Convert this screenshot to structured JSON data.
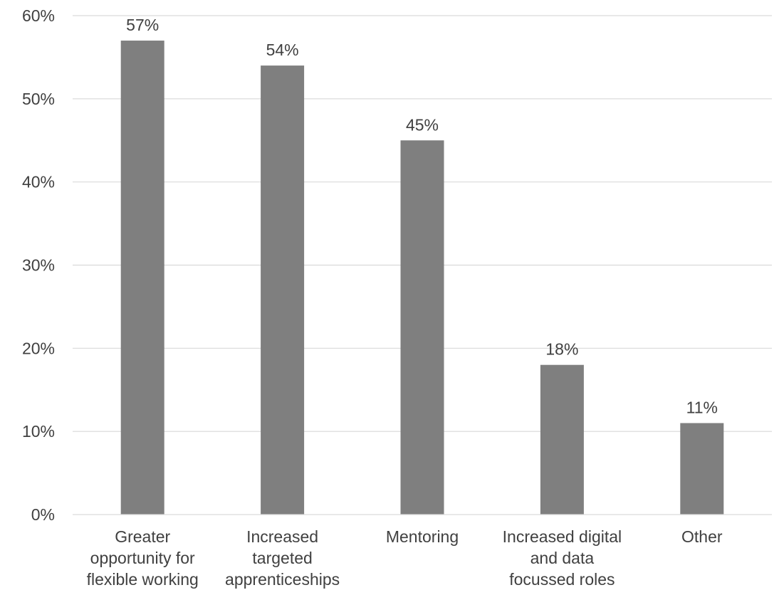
{
  "chart_data": {
    "type": "bar",
    "title": "",
    "xlabel": "",
    "ylabel": "",
    "categories": [
      [
        "Greater",
        "opportunity for",
        "flexible working"
      ],
      [
        "Increased",
        "targeted",
        "apprenticeships"
      ],
      [
        "Mentoring"
      ],
      [
        "Increased digital",
        "and data",
        "focussed roles"
      ],
      [
        "Other"
      ]
    ],
    "values": [
      57,
      54,
      45,
      18,
      11
    ],
    "value_labels": [
      "57%",
      "54%",
      "45%",
      "18%",
      "11%"
    ],
    "ylim": [
      0,
      60
    ],
    "yticks": [
      0,
      10,
      20,
      30,
      40,
      50,
      60
    ],
    "ytick_labels": [
      "0%",
      "10%",
      "20%",
      "30%",
      "40%",
      "50%",
      "60%"
    ],
    "grid": true,
    "legend": "none",
    "bar_color": "#7f7f7f"
  }
}
